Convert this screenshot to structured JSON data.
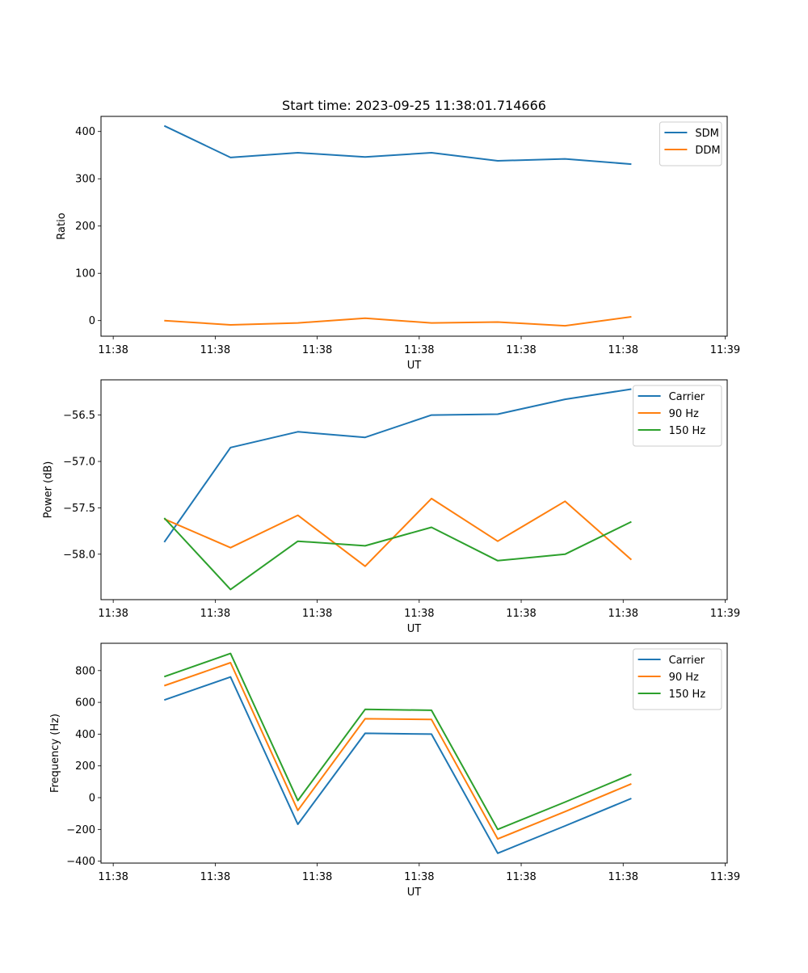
{
  "chart_data": [
    {
      "type": "line",
      "title": "Start time: 2023-09-25 11:38:01.714666",
      "xlabel": "UT",
      "ylabel": "Ratio",
      "x": [
        0.5,
        1.15,
        1.81,
        2.47,
        3.12,
        3.77,
        4.43,
        5.08
      ],
      "xlim": [
        -0.12,
        6.02
      ],
      "xticks": [
        0,
        1,
        2,
        3,
        4,
        5,
        6
      ],
      "xtick_labels": [
        "11:38",
        "11:38",
        "11:38",
        "11:38",
        "11:38",
        "11:38",
        "11:39"
      ],
      "ylim": [
        -33,
        432
      ],
      "yticks": [
        0,
        100,
        200,
        300,
        400
      ],
      "ytick_labels": [
        "0",
        "100",
        "200",
        "300",
        "400"
      ],
      "legend": "top-right",
      "grid": false,
      "series": [
        {
          "name": "SDM",
          "color": "#1f77b4",
          "values": [
            412,
            345,
            355,
            346,
            355,
            338,
            342,
            331
          ]
        },
        {
          "name": "DDM",
          "color": "#ff7f0e",
          "values": [
            0,
            -9,
            -5,
            5,
            -5,
            -3,
            -11,
            8
          ]
        }
      ]
    },
    {
      "type": "line",
      "title": "",
      "xlabel": "UT",
      "ylabel": "Power (dB)",
      "x": [
        0.5,
        1.15,
        1.81,
        2.47,
        3.12,
        3.77,
        4.43,
        5.08
      ],
      "xlim": [
        -0.12,
        6.02
      ],
      "xticks": [
        0,
        1,
        2,
        3,
        4,
        5,
        6
      ],
      "xtick_labels": [
        "11:38",
        "11:38",
        "11:38",
        "11:38",
        "11:38",
        "11:38",
        "11:39"
      ],
      "ylim": [
        -58.49,
        -56.12
      ],
      "yticks": [
        -58.0,
        -57.5,
        -57.0,
        -56.5
      ],
      "ytick_labels": [
        "−58.0",
        "−57.5",
        "−57.0",
        "−56.5"
      ],
      "legend": "top-right",
      "grid": false,
      "series": [
        {
          "name": "Carrier",
          "color": "#1f77b4",
          "values": [
            -57.87,
            -56.85,
            -56.68,
            -56.74,
            -56.5,
            -56.49,
            -56.33,
            -56.22
          ]
        },
        {
          "name": "90 Hz",
          "color": "#ff7f0e",
          "values": [
            -57.62,
            -57.93,
            -57.58,
            -58.13,
            -57.4,
            -57.86,
            -57.43,
            -58.06
          ]
        },
        {
          "name": "150 Hz",
          "color": "#2ca02c",
          "values": [
            -57.61,
            -58.38,
            -57.86,
            -57.91,
            -57.71,
            -58.07,
            -58.0,
            -57.65
          ]
        }
      ]
    },
    {
      "type": "line",
      "title": "",
      "xlabel": "UT",
      "ylabel": "Frequency (Hz)",
      "x": [
        0.5,
        1.15,
        1.81,
        2.47,
        3.12,
        3.77,
        4.43,
        5.08
      ],
      "xlim": [
        -0.12,
        6.02
      ],
      "xticks": [
        0,
        1,
        2,
        3,
        4,
        5,
        6
      ],
      "xtick_labels": [
        "11:38",
        "11:38",
        "11:38",
        "11:38",
        "11:38",
        "11:38",
        "11:39"
      ],
      "ylim": [
        -412,
        972
      ],
      "yticks": [
        -400,
        -200,
        0,
        200,
        400,
        600,
        800
      ],
      "ytick_labels": [
        "−400",
        "−200",
        "0",
        "200",
        "400",
        "600",
        "800"
      ],
      "legend": "top-right",
      "grid": false,
      "series": [
        {
          "name": "Carrier",
          "color": "#1f77b4",
          "values": [
            615,
            760,
            -168,
            405,
            400,
            -350,
            -178,
            -5
          ]
        },
        {
          "name": "90 Hz",
          "color": "#ff7f0e",
          "values": [
            705,
            850,
            -80,
            497,
            492,
            -260,
            -88,
            87
          ]
        },
        {
          "name": "150 Hz",
          "color": "#2ca02c",
          "values": [
            762,
            908,
            -18,
            556,
            550,
            -200,
            -28,
            147
          ]
        }
      ]
    }
  ]
}
